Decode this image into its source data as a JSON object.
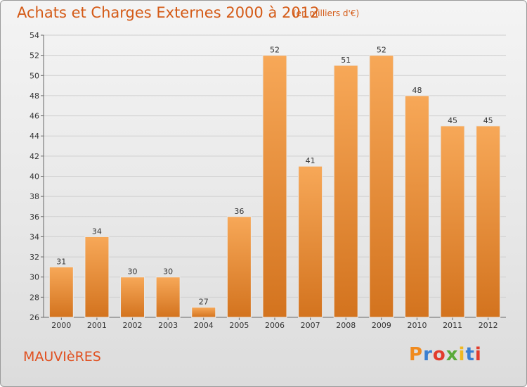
{
  "header": {
    "title": "Achats et Charges Externes 2000 à 2012",
    "subtitle": "(en milliers d'€)"
  },
  "footer": {
    "commune": "MAUVIèRES",
    "brand": "Proxiti",
    "brand_colors": [
      "#f08a1e",
      "#3a7fd0",
      "#e23c2c",
      "#5aaa3a",
      "#f0b820",
      "#3a7fd0",
      "#e23c2c"
    ]
  },
  "colors": {
    "bar_top": "#f7a858",
    "bar_bottom": "#d3731e",
    "accent": "#d45a16"
  },
  "chart_data": {
    "type": "bar",
    "title": "Achats et Charges Externes 2000 à 2012",
    "subtitle": "(en milliers d'€)",
    "xlabel": "",
    "ylabel": "",
    "categories": [
      "2000",
      "2001",
      "2002",
      "2003",
      "2004",
      "2005",
      "2006",
      "2007",
      "2008",
      "2009",
      "2010",
      "2011",
      "2012"
    ],
    "values": [
      31,
      34,
      30,
      30,
      27,
      36,
      52,
      41,
      51,
      52,
      48,
      45,
      45
    ],
    "ylim": [
      26,
      54
    ],
    "yticks": [
      26,
      28,
      30,
      32,
      34,
      36,
      38,
      40,
      42,
      44,
      46,
      48,
      50,
      52,
      54
    ],
    "grid": true,
    "data_labels": true
  }
}
